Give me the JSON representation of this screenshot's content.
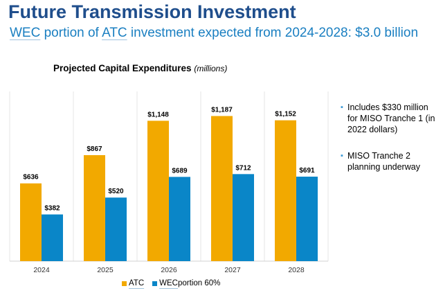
{
  "header": {
    "title": "Future Transmission Investment",
    "subtitle_part1": "WEC",
    "subtitle_part2": " portion of ",
    "subtitle_part3": "ATC",
    "subtitle_part4": " investment expected from 2024-2028: $3.0 billion"
  },
  "chart_data": {
    "type": "bar",
    "title": "Projected Capital Expenditures",
    "unit_label": "(millions)",
    "categories": [
      "2024",
      "2025",
      "2026",
      "2027",
      "2028"
    ],
    "series": [
      {
        "name": "ATC",
        "color": "#f2a900",
        "values": [
          636,
          867,
          1148,
          1187,
          1152
        ],
        "labels": [
          "$636",
          "$867",
          "$1,148",
          "$1,187",
          "$1,152"
        ]
      },
      {
        "name": "WEC portion 60%",
        "color": "#0a86c8",
        "values": [
          382,
          520,
          689,
          712,
          691
        ],
        "labels": [
          "$382",
          "$520",
          "$689",
          "$712",
          "$691"
        ]
      }
    ],
    "ylim": [
      0,
      1400
    ],
    "xlabel": "",
    "ylabel": "",
    "legend": "bottom"
  },
  "legend": {
    "atc_label": "ATC",
    "wec_label_part1": "WEC",
    "wec_label_part2": " portion 60%",
    "atc_color": "#f2a900",
    "wec_color": "#0a86c8"
  },
  "notes": {
    "items": [
      "Includes $330 million for MISO Tranche 1 (in 2022 dollars)",
      "MISO Tranche 2 planning underway"
    ],
    "bullet_glyph": "▪"
  }
}
